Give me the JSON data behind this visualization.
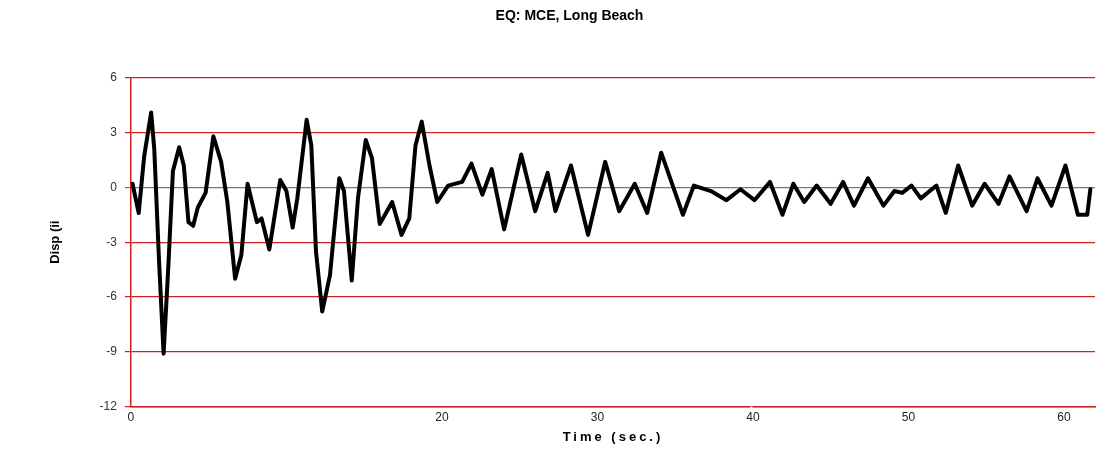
{
  "chart_data": {
    "type": "line",
    "title": "EQ: MCE, Long Beach",
    "xlabel": "Time (sec.)",
    "ylabel": "Disp (ii",
    "x": [
      0.1,
      0.5,
      0.85,
      1.3,
      1.5,
      1.8,
      2.1,
      2.4,
      2.7,
      3.1,
      3.4,
      3.7,
      4.0,
      4.3,
      4.8,
      5.3,
      5.8,
      6.2,
      6.7,
      7.1,
      7.5,
      8.1,
      8.4,
      8.9,
      9.6,
      10.0,
      10.4,
      10.7,
      11.3,
      11.6,
      11.9,
      12.3,
      12.8,
      13.4,
      13.7,
      14.2,
      14.6,
      15.1,
      15.5,
      16.0,
      16.8,
      17.4,
      17.9,
      18.3,
      18.7,
      19.2,
      19.7,
      20.4,
      21.3,
      21.9,
      22.6,
      23.2,
      24.0,
      25.1,
      26.0,
      26.8,
      27.3,
      28.3,
      29.4,
      30.5,
      31.4,
      32.4,
      33.2,
      34.1,
      35.5,
      36.2,
      37.3,
      38.3,
      39.2,
      40.1,
      41.1,
      41.9,
      42.6,
      43.3,
      44.1,
      45.0,
      45.8,
      46.5,
      47.4,
      48.4,
      49.1,
      49.6,
      50.2,
      50.8,
      51.8,
      52.4,
      53.2,
      54.1,
      54.9,
      55.8,
      56.5,
      57.6,
      58.3,
      59.2,
      60.1,
      60.9,
      61.5,
      61.7
    ],
    "series": [
      {
        "color": "#000000",
        "values": [
          0.2,
          -1.4,
          1.7,
          4.1,
          2.1,
          -3.9,
          -9.1,
          -4.4,
          0.9,
          2.2,
          1.2,
          -1.9,
          -2.1,
          -1.1,
          -0.3,
          2.8,
          1.4,
          -0.8,
          -5.0,
          -3.7,
          0.2,
          -1.9,
          -1.7,
          -3.4,
          0.4,
          -0.2,
          -2.2,
          -0.6,
          3.7,
          2.3,
          -3.5,
          -6.8,
          -4.8,
          0.5,
          -0.2,
          -5.1,
          -0.6,
          2.6,
          1.6,
          -2.0,
          -0.8,
          -2.6,
          -1.7,
          2.3,
          3.6,
          1.2,
          -0.8,
          0.1,
          0.3,
          1.3,
          -0.4,
          1.0,
          -2.3,
          1.8,
          -1.3,
          0.8,
          -1.3,
          1.2,
          -2.6,
          1.4,
          -1.3,
          0.2,
          -1.4,
          1.9,
          -1.5,
          0.1,
          -0.2,
          -0.7,
          -0.1,
          -0.7,
          0.3,
          -1.5,
          0.2,
          -0.8,
          0.1,
          -0.9,
          0.3,
          -1.0,
          0.5,
          -1.0,
          -0.2,
          -0.3,
          0.1,
          -0.6,
          0.1,
          -1.4,
          1.2,
          -1.0,
          0.2,
          -0.9,
          0.6,
          -1.3,
          0.5,
          -1.0,
          1.2,
          -1.5,
          -1.5,
          -0.1
        ]
      }
    ],
    "xlim": [
      0,
      62
    ],
    "xticks": [
      0,
      20,
      30,
      40,
      50,
      60
    ],
    "ylim": [
      -12,
      6
    ],
    "yticks": [
      -12,
      -9,
      -6,
      -3,
      0,
      3,
      6
    ],
    "grid": "y",
    "legend": false,
    "marker": "none",
    "line_style": "solid"
  }
}
